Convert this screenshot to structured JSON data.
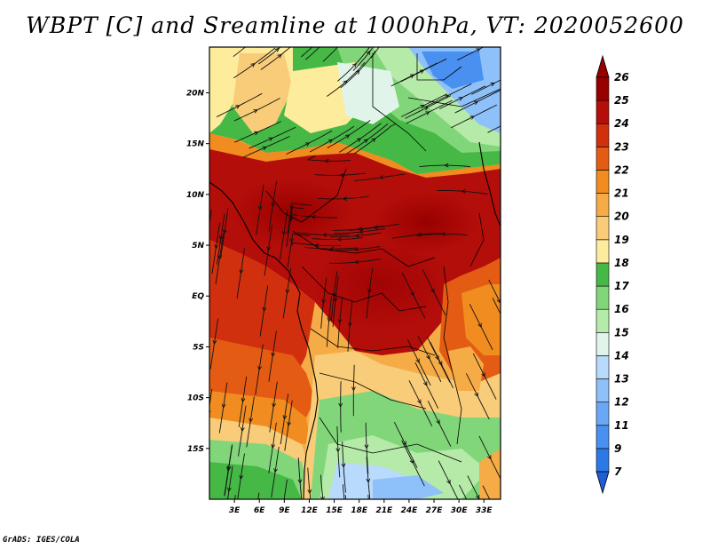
{
  "title": "WBPT [C] and Sreamline at 1000hPa, VT: 2020052600",
  "footer": "GrADS: IGES/COLA",
  "chart_data": {
    "type": "heatmap",
    "title": "WBPT [C] and Sreamline at 1000hPa, VT: 2020052600",
    "variable": "Wet-bulb potential temperature (C) with 1000hPa streamlines",
    "valid_time": "2020052600",
    "xlim": [
      0,
      35
    ],
    "ylim": [
      -20,
      24.5
    ],
    "x_ticks": [
      {
        "value": 3,
        "label": "3E"
      },
      {
        "value": 6,
        "label": "6E"
      },
      {
        "value": 9,
        "label": "9E"
      },
      {
        "value": 12,
        "label": "12E"
      },
      {
        "value": 15,
        "label": "15E"
      },
      {
        "value": 18,
        "label": "18E"
      },
      {
        "value": 21,
        "label": "21E"
      },
      {
        "value": 24,
        "label": "24E"
      },
      {
        "value": 27,
        "label": "27E"
      },
      {
        "value": 30,
        "label": "30E"
      },
      {
        "value": 33,
        "label": "33E"
      }
    ],
    "y_ticks": [
      {
        "value": 20,
        "label": "20N"
      },
      {
        "value": 15,
        "label": "15N"
      },
      {
        "value": 10,
        "label": "10N"
      },
      {
        "value": 5,
        "label": "5N"
      },
      {
        "value": 0,
        "label": "EQ"
      },
      {
        "value": -5,
        "label": "5S"
      },
      {
        "value": -10,
        "label": "10S"
      },
      {
        "value": -15,
        "label": "15S"
      }
    ],
    "colorbar": {
      "levels": [
        "7",
        "9",
        "11",
        "12",
        "13",
        "14",
        "15",
        "16",
        "17",
        "18",
        "19",
        "20",
        "21",
        "22",
        "23",
        "24",
        "25",
        "26"
      ],
      "colors": [
        "#1e5fd6",
        "#2c78e6",
        "#4a90f0",
        "#6aa8f6",
        "#8ec0fa",
        "#b8dafc",
        "#e0f4ea",
        "#b6eaa8",
        "#82d67a",
        "#46b846",
        "#fcec9c",
        "#f8cc78",
        "#f6ac46",
        "#f08c20",
        "#e45c14",
        "#d0300e",
        "#b40e0a",
        "#980000"
      ]
    }
  }
}
